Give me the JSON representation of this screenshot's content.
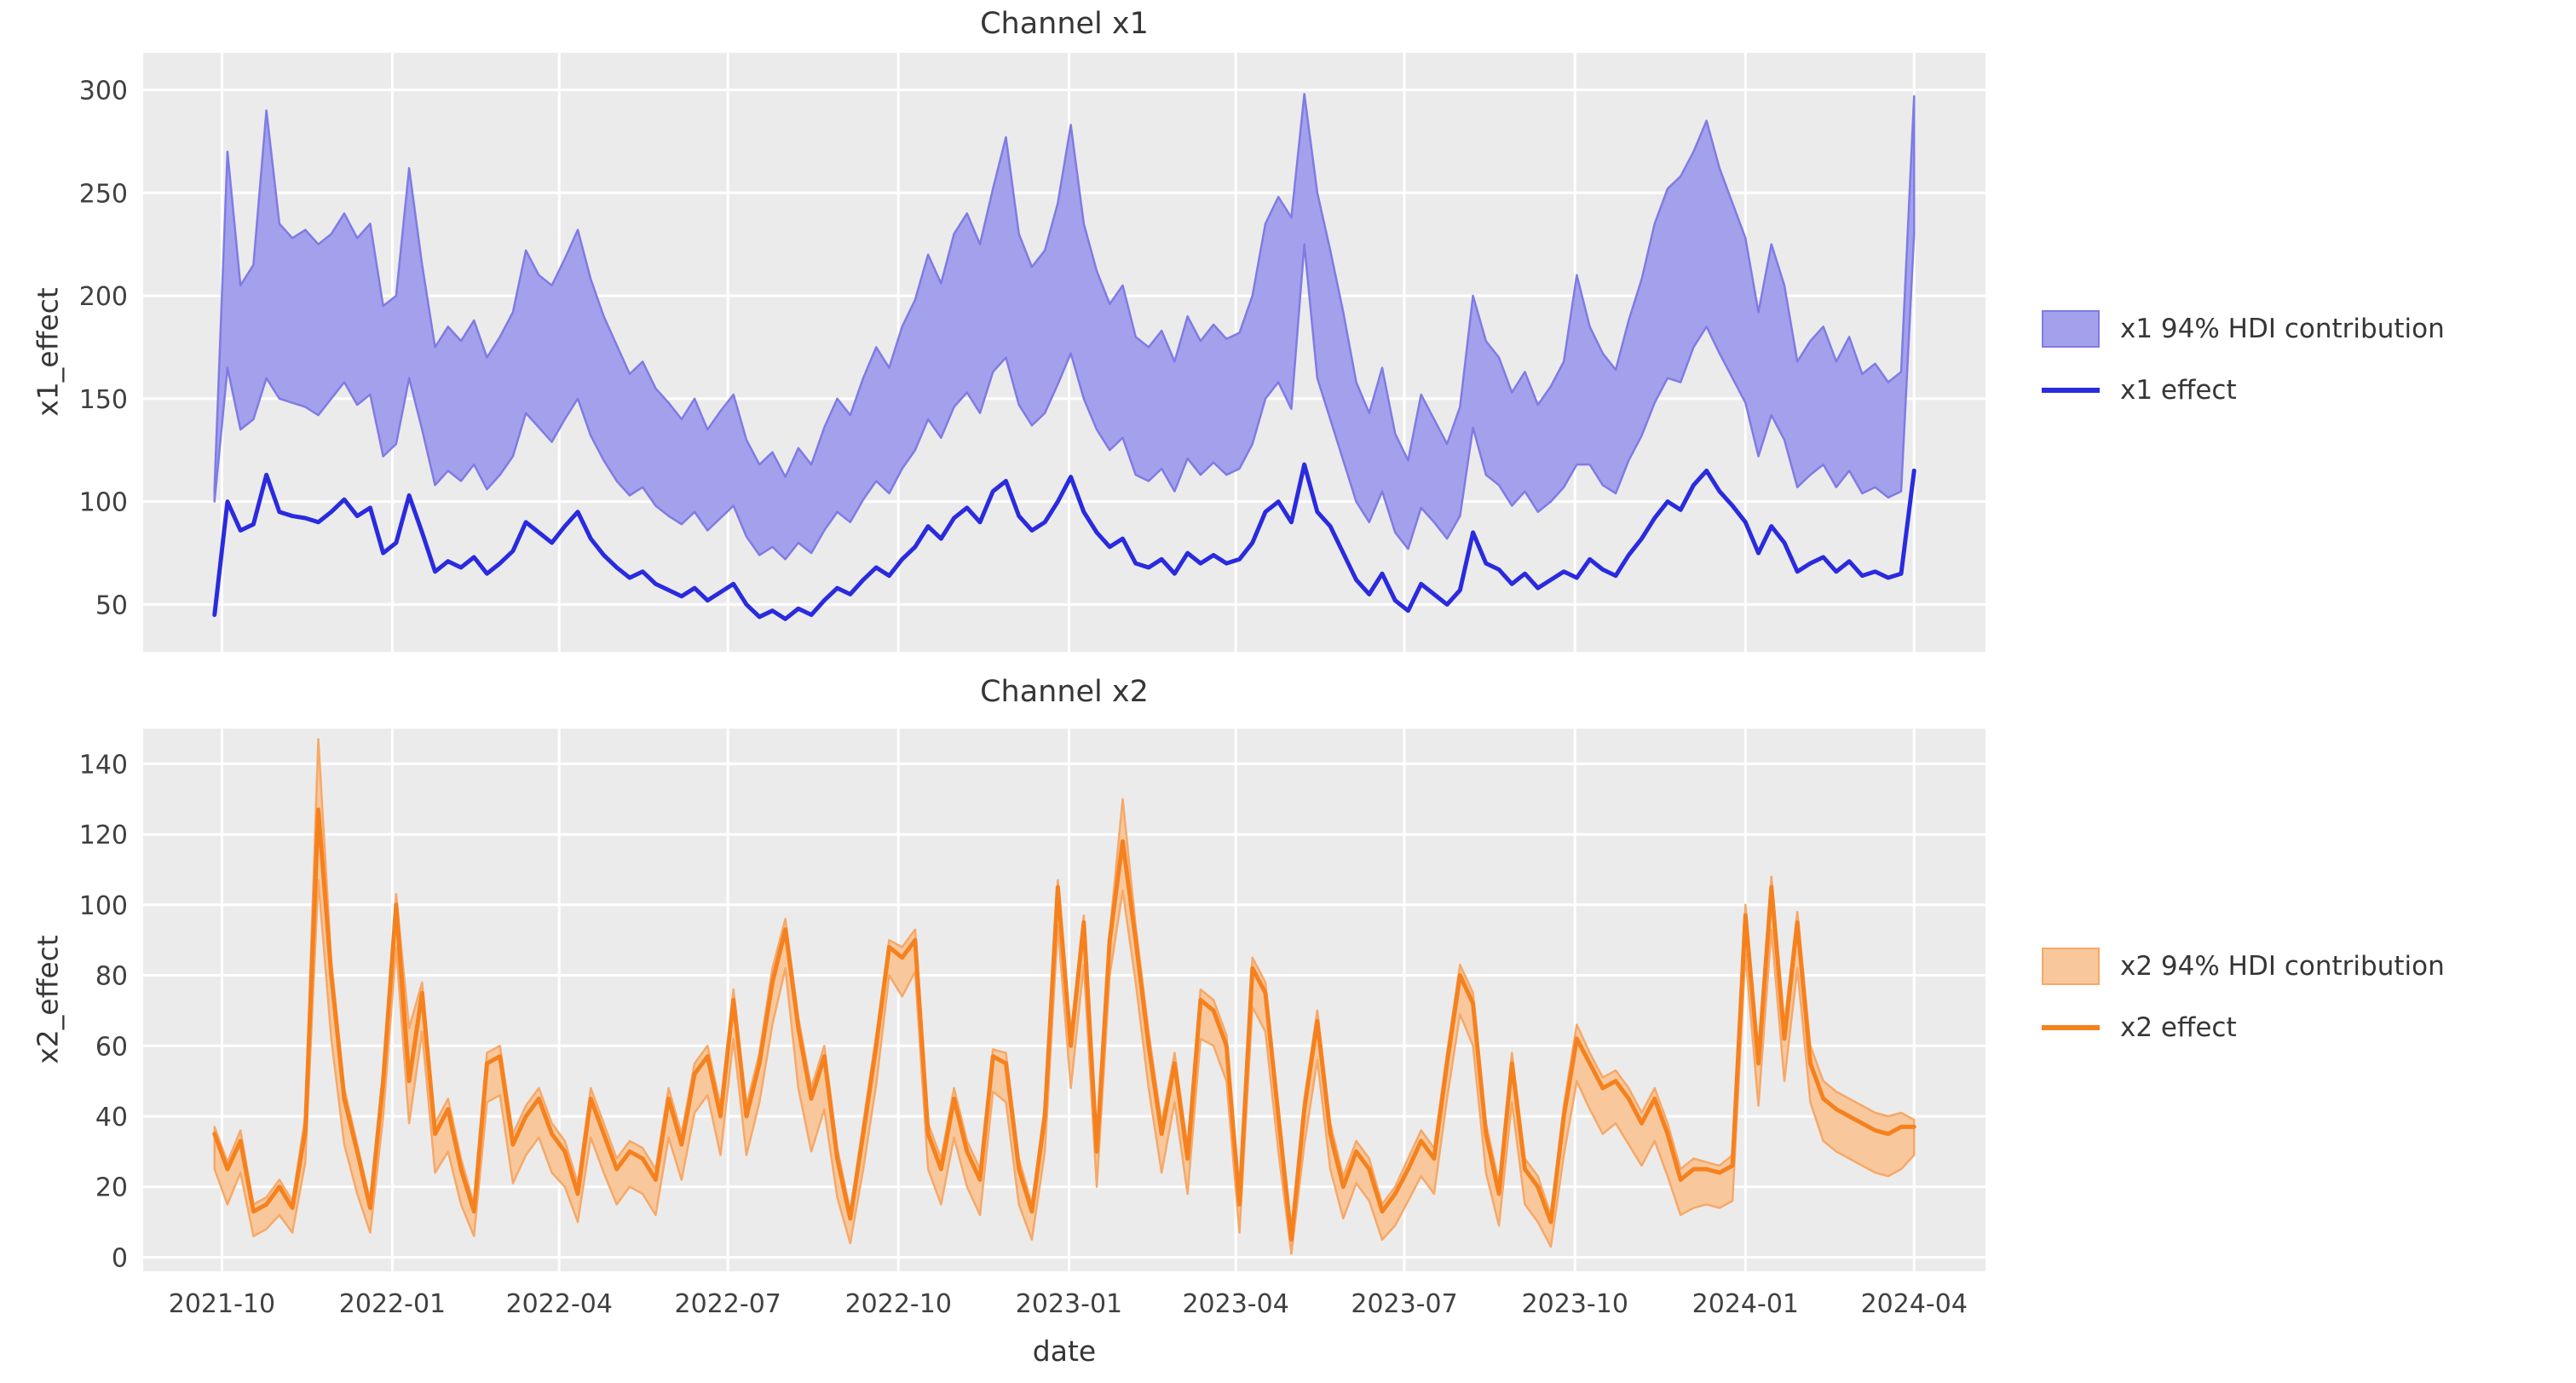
{
  "figure": {
    "bg": "#ffffff",
    "axes_bg": "#ebebeb",
    "grid_color": "#ffffff",
    "title_color": "#363636",
    "tick_color": "#404040"
  },
  "x_axis": {
    "label": "date",
    "tick_labels": [
      "2021-10",
      "2022-01",
      "2022-04",
      "2022-07",
      "2022-10",
      "2023-01",
      "2023-04",
      "2023-07",
      "2023-10",
      "2024-01",
      "2024-04"
    ],
    "tick_weeks": [
      0.57,
      13.71,
      26.57,
      39.57,
      52.71,
      65.86,
      78.71,
      91.71,
      104.86,
      118.0,
      131.0
    ],
    "xlim_weeks": [
      -5.5,
      136.5
    ],
    "n_points": 132,
    "start_date": "2021-09-27",
    "frequency": "weekly"
  },
  "chart_data": [
    {
      "type": "area",
      "title": "Channel x1",
      "ylabel": "x1_effect",
      "ylim": [
        27,
        318
      ],
      "yticks": [
        50,
        100,
        150,
        200,
        250,
        300
      ],
      "grid": true,
      "legend_position": "right",
      "colors": {
        "line": "#2a2adf",
        "band_fill": "#a3a1ec",
        "band_edge": "#7f7be4"
      },
      "legend": [
        {
          "swatch": "band",
          "label": "x1 94% HDI contribution"
        },
        {
          "swatch": "line",
          "label": "x1 effect"
        }
      ],
      "series": {
        "line": [
          45,
          100,
          86,
          89,
          113,
          95,
          93,
          92,
          90,
          95,
          101,
          93,
          97,
          75,
          80,
          103,
          85,
          66,
          71,
          68,
          73,
          65,
          70,
          76,
          90,
          85,
          80,
          88,
          95,
          82,
          74,
          68,
          63,
          66,
          60,
          57,
          54,
          58,
          52,
          56,
          60,
          50,
          44,
          47,
          43,
          48,
          45,
          52,
          58,
          55,
          62,
          68,
          64,
          72,
          78,
          88,
          82,
          92,
          97,
          90,
          105,
          110,
          93,
          86,
          90,
          100,
          112,
          95,
          85,
          78,
          82,
          70,
          68,
          72,
          65,
          75,
          70,
          74,
          70,
          72,
          80,
          95,
          100,
          90,
          118,
          95,
          88,
          75,
          62,
          55,
          65,
          52,
          47,
          60,
          55,
          50,
          57,
          85,
          70,
          67,
          60,
          65,
          58,
          62,
          66,
          63,
          72,
          67,
          64,
          74,
          82,
          92,
          100,
          96,
          108,
          115,
          105,
          98,
          90,
          75,
          88,
          80,
          66,
          70,
          73,
          66,
          71,
          64,
          66,
          63,
          65,
          115
        ],
        "hdi_lo": [
          100,
          165,
          135,
          140,
          160,
          150,
          148,
          146,
          142,
          150,
          158,
          147,
          152,
          122,
          128,
          160,
          135,
          108,
          115,
          110,
          118,
          106,
          113,
          122,
          143,
          136,
          129,
          140,
          150,
          132,
          120,
          110,
          103,
          107,
          98,
          93,
          89,
          95,
          86,
          92,
          98,
          83,
          74,
          78,
          72,
          80,
          75,
          86,
          95,
          90,
          101,
          110,
          104,
          116,
          125,
          140,
          131,
          146,
          153,
          143,
          163,
          170,
          147,
          137,
          143,
          157,
          172,
          150,
          135,
          125,
          131,
          113,
          110,
          116,
          105,
          121,
          113,
          119,
          113,
          116,
          128,
          150,
          158,
          145,
          225,
          160,
          140,
          120,
          100,
          90,
          105,
          85,
          77,
          97,
          90,
          82,
          93,
          136,
          113,
          108,
          98,
          105,
          95,
          100,
          107,
          118,
          118,
          108,
          104,
          120,
          132,
          148,
          160,
          158,
          175,
          185,
          172,
          160,
          148,
          122,
          142,
          130,
          107,
          113,
          118,
          107,
          115,
          104,
          107,
          102,
          105,
          230
        ],
        "hdi_hi": [
          107,
          270,
          205,
          215,
          290,
          235,
          228,
          232,
          225,
          230,
          240,
          228,
          235,
          195,
          200,
          262,
          215,
          175,
          185,
          178,
          188,
          170,
          180,
          192,
          222,
          210,
          205,
          218,
          232,
          208,
          190,
          176,
          162,
          168,
          155,
          148,
          140,
          150,
          135,
          144,
          152,
          130,
          118,
          124,
          112,
          126,
          118,
          136,
          150,
          142,
          160,
          175,
          165,
          185,
          198,
          220,
          206,
          230,
          240,
          225,
          252,
          277,
          230,
          214,
          222,
          245,
          283,
          235,
          212,
          196,
          205,
          180,
          175,
          183,
          168,
          190,
          178,
          186,
          179,
          182,
          200,
          235,
          248,
          238,
          298,
          250,
          222,
          192,
          158,
          143,
          165,
          133,
          120,
          152,
          140,
          128,
          146,
          200,
          178,
          170,
          153,
          163,
          147,
          156,
          168,
          210,
          185,
          172,
          164,
          188,
          208,
          235,
          252,
          258,
          270,
          285,
          262,
          245,
          228,
          192,
          225,
          205,
          168,
          178,
          185,
          168,
          180,
          162,
          167,
          158,
          163,
          297
        ]
      }
    },
    {
      "type": "area",
      "title": "Channel x2",
      "ylabel": "x2_effect",
      "ylim": [
        -4,
        150
      ],
      "yticks": [
        0,
        20,
        40,
        60,
        80,
        100,
        120,
        140
      ],
      "grid": true,
      "legend_position": "right",
      "colors": {
        "line": "#f5811e",
        "band_fill": "#f8c89c",
        "band_edge": "#f6a868"
      },
      "legend": [
        {
          "swatch": "band",
          "label": "x2 94% HDI contribution"
        },
        {
          "swatch": "line",
          "label": "x2 effect"
        }
      ],
      "series": {
        "line": [
          35,
          25,
          33,
          13,
          15,
          20,
          14,
          36,
          127,
          80,
          45,
          30,
          14,
          50,
          100,
          50,
          75,
          35,
          42,
          25,
          13,
          55,
          57,
          32,
          40,
          45,
          35,
          30,
          18,
          45,
          35,
          25,
          30,
          28,
          22,
          45,
          32,
          52,
          57,
          40,
          73,
          40,
          55,
          78,
          93,
          65,
          45,
          57,
          28,
          11,
          35,
          60,
          88,
          85,
          90,
          35,
          25,
          45,
          30,
          22,
          57,
          55,
          25,
          13,
          40,
          105,
          60,
          95,
          30,
          90,
          118,
          90,
          60,
          35,
          55,
          28,
          73,
          70,
          60,
          15,
          82,
          75,
          40,
          5,
          42,
          67,
          35,
          20,
          30,
          25,
          13,
          18,
          25,
          33,
          28,
          55,
          80,
          72,
          35,
          18,
          55,
          25,
          20,
          10,
          40,
          62,
          55,
          48,
          50,
          45,
          38,
          45,
          35,
          22,
          25,
          25,
          24,
          26,
          97,
          55,
          105,
          62,
          95,
          55,
          45,
          42,
          40,
          38,
          36,
          35,
          37,
          37
        ],
        "hdi_lo": [
          25,
          15,
          24,
          6,
          8,
          12,
          7,
          27,
          107,
          62,
          32,
          18,
          7,
          40,
          88,
          38,
          64,
          24,
          30,
          15,
          6,
          44,
          46,
          21,
          29,
          34,
          24,
          20,
          10,
          34,
          24,
          15,
          20,
          18,
          12,
          34,
          22,
          41,
          46,
          29,
          62,
          29,
          44,
          66,
          82,
          48,
          30,
          42,
          17,
          4,
          25,
          49,
          80,
          74,
          81,
          25,
          15,
          34,
          20,
          12,
          47,
          44,
          15,
          5,
          30,
          94,
          48,
          83,
          20,
          80,
          104,
          78,
          48,
          24,
          44,
          18,
          62,
          60,
          50,
          7,
          71,
          64,
          30,
          1,
          32,
          56,
          25,
          11,
          21,
          16,
          5,
          9,
          16,
          23,
          18,
          45,
          69,
          60,
          24,
          9,
          44,
          15,
          10,
          3,
          29,
          50,
          42,
          35,
          38,
          32,
          26,
          33,
          23,
          12,
          14,
          15,
          14,
          16,
          86,
          43,
          93,
          50,
          82,
          44,
          33,
          30,
          28,
          26,
          24,
          23,
          25,
          29
        ],
        "hdi_hi": [
          37,
          27,
          36,
          15,
          17,
          22,
          16,
          40,
          147,
          84,
          48,
          32,
          16,
          53,
          103,
          65,
          78,
          38,
          45,
          28,
          15,
          58,
          60,
          35,
          43,
          48,
          38,
          33,
          21,
          48,
          38,
          28,
          33,
          31,
          25,
          48,
          35,
          55,
          60,
          43,
          76,
          43,
          58,
          82,
          96,
          68,
          48,
          60,
          31,
          13,
          38,
          63,
          90,
          88,
          93,
          38,
          28,
          48,
          33,
          25,
          59,
          58,
          28,
          15,
          43,
          107,
          63,
          97,
          33,
          92,
          130,
          94,
          64,
          38,
          58,
          31,
          76,
          73,
          63,
          18,
          85,
          78,
          43,
          8,
          45,
          70,
          38,
          23,
          33,
          28,
          15,
          20,
          28,
          36,
          31,
          58,
          83,
          75,
          38,
          21,
          58,
          28,
          23,
          12,
          43,
          66,
          58,
          51,
          53,
          48,
          41,
          48,
          38,
          25,
          28,
          27,
          26,
          29,
          100,
          58,
          108,
          66,
          98,
          60,
          50,
          47,
          45,
          43,
          41,
          40,
          41,
          39
        ]
      }
    }
  ]
}
